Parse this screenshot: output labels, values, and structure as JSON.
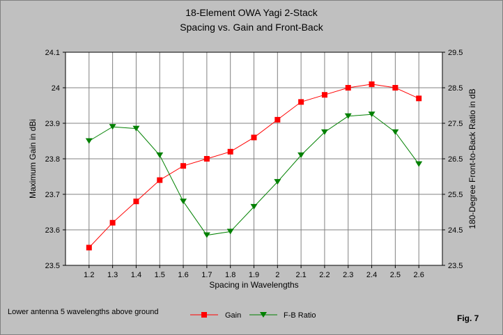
{
  "chart_data": {
    "type": "line",
    "title": "18-Element OWA Yagi 2-Stack",
    "subtitle": "Spacing vs. Gain and Front-Back",
    "xlabel": "Spacing in Wavelengths",
    "ylabel_left": "Maximum Gain in dBi",
    "ylabel_right": "180-Degree Front-to-Back Ratio in dB",
    "x": [
      1.2,
      1.3,
      1.4,
      1.5,
      1.6,
      1.7,
      1.8,
      1.9,
      2.0,
      2.1,
      2.2,
      2.3,
      2.4,
      2.5,
      2.6
    ],
    "x_tick_labels": [
      "1.2",
      "1.3",
      "1.4",
      "1.5",
      "1.6",
      "1.7",
      "1.8",
      "1.9",
      "2",
      "2.1",
      "2.2",
      "2.3",
      "2.4",
      "2.5",
      "2.6"
    ],
    "xlim": [
      1.1,
      2.7
    ],
    "ylim_left": [
      23.5,
      24.1
    ],
    "y_left_ticks": [
      "23.5",
      "23.6",
      "23.7",
      "23.8",
      "23.9",
      "24",
      "24.1"
    ],
    "ylim_right": [
      23.5,
      29.5
    ],
    "y_right_ticks": [
      "23.5",
      "24.5",
      "25.5",
      "26.5",
      "27.5",
      "28.5",
      "29.5"
    ],
    "grid": true,
    "legend_position": "bottom",
    "series": [
      {
        "name": "Gain",
        "axis": "left",
        "marker": "square",
        "color": "#ff0000",
        "values": [
          23.55,
          23.62,
          23.68,
          23.74,
          23.78,
          23.8,
          23.82,
          23.86,
          23.91,
          23.96,
          23.98,
          24.0,
          24.01,
          24.0,
          23.97
        ]
      },
      {
        "name": "F-B Ratio",
        "axis": "right",
        "marker": "triangle-down",
        "color": "#008000",
        "values": [
          27.0,
          27.4,
          27.35,
          26.6,
          25.3,
          24.35,
          24.45,
          25.15,
          25.85,
          26.6,
          27.25,
          27.7,
          27.75,
          27.25,
          26.35
        ]
      }
    ],
    "annotations": {
      "note": "Lower antenna 5 wavelengths above ground",
      "figure_label": "Fig. 7"
    }
  }
}
